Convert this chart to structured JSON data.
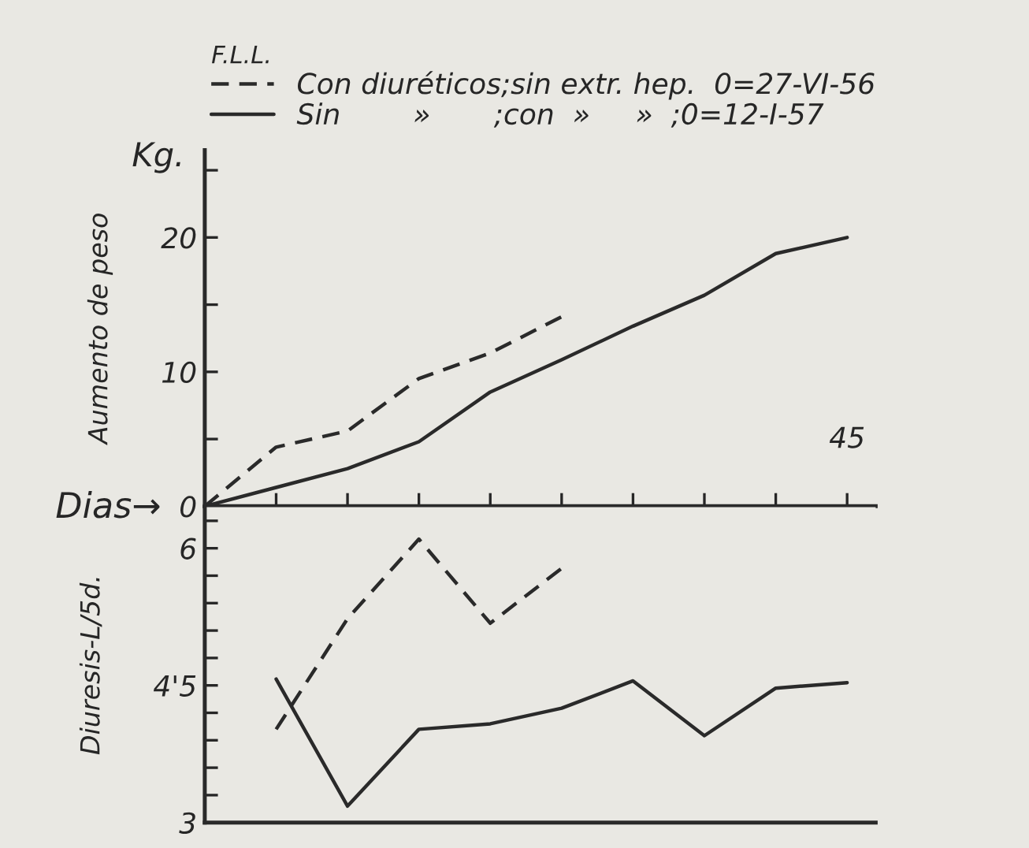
{
  "chart_data": [
    {
      "type": "line",
      "legend_title": "F.L.L.",
      "ylabel": "Aumento de peso",
      "xlabel": "Dias→",
      "annotations": [
        "Kg."
      ],
      "legend": "top left",
      "grid": false,
      "marker": "none",
      "categories": [
        null,
        null,
        null,
        null,
        null,
        null,
        null,
        null,
        null,
        "45"
      ],
      "ylim": [
        0,
        26.5
      ],
      "yticks": [
        0,
        {
          "value": 5,
          "label": null
        },
        10,
        {
          "value": 15,
          "label": null
        },
        20,
        {
          "value": 25,
          "label": null
        }
      ],
      "series": [
        {
          "name": "Con diuréticos;sin extr. hep.  0=27-VI-56",
          "color": "#2a2a2a",
          "line_style": "dashed",
          "values": [
            0,
            4.4,
            5.6,
            9.5,
            11.4,
            14.1,
            null,
            null,
            null,
            null
          ]
        },
        {
          "name": "Sin        »       ;con  »     »  ;0=12-I-57",
          "color": "#2a2a2a",
          "line_style": "solid",
          "values": [
            0,
            1.4,
            2.8,
            4.8,
            8.5,
            10.9,
            13.4,
            15.7,
            18.8,
            20
          ]
        }
      ]
    },
    {
      "type": "line",
      "ylabel": "Diuresis-L/5d.",
      "tick_labels": "y",
      "grid": false,
      "marker": "none",
      "categories": [
        null,
        null,
        null,
        null,
        null,
        null,
        null,
        null,
        null,
        null
      ],
      "ylim": [
        3,
        6.45
      ],
      "yticks": [
        3,
        {
          "value": 3.3,
          "label": null
        },
        {
          "value": 3.6,
          "label": null
        },
        {
          "value": 3.9,
          "label": null
        },
        {
          "value": 4.2,
          "label": null
        },
        {
          "value": 4.5,
          "label": "4'5"
        },
        {
          "value": 4.8,
          "label": null
        },
        {
          "value": 5.1,
          "label": null
        },
        {
          "value": 5.4,
          "label": null
        },
        {
          "value": 5.7,
          "label": null
        },
        6,
        {
          "value": 6.3,
          "label": null
        }
      ],
      "series": [
        {
          "color": "#2a2a2a",
          "line_style": "dashed",
          "values": [
            null,
            4.02,
            5.23,
            6.1,
            5.18,
            5.78,
            null,
            null,
            null,
            null
          ]
        },
        {
          "color": "#2a2a2a",
          "line_style": "solid",
          "values": [
            null,
            4.57,
            3.18,
            4.02,
            4.08,
            4.25,
            4.55,
            3.95,
            4.47,
            4.53
          ]
        }
      ]
    }
  ]
}
